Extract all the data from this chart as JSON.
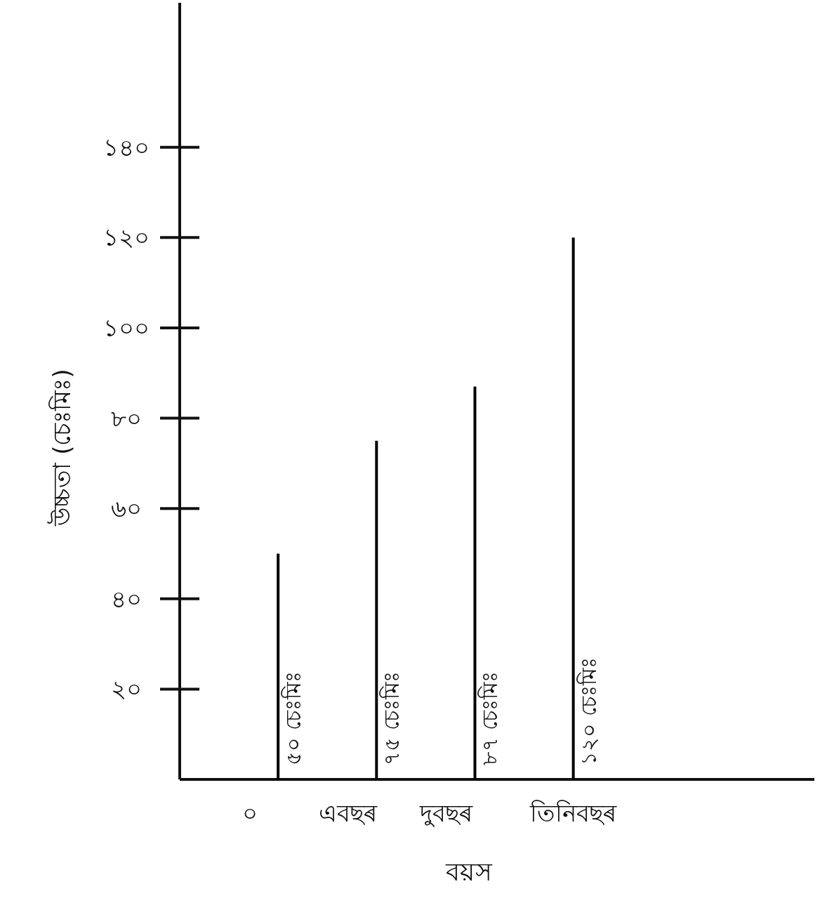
{
  "chart_data": {
    "type": "bar",
    "xlabel": "বয়স",
    "ylabel": "উচ্চতা (চেঃমিঃ)",
    "categories": [
      "০",
      "এবছৰ",
      "দুবছৰ",
      "তিনিবছৰ"
    ],
    "values": [
      50,
      75,
      87,
      120
    ],
    "value_labels": [
      "৫০ চেঃমিঃ",
      "৭৫ চেঃমিঃ",
      "৮৭ চেঃমিঃ",
      "১২০ চেঃমিঃ"
    ],
    "color": "#000000",
    "ylim": [
      0,
      172
    ],
    "yticks": [
      {
        "value": 20,
        "label": "২০"
      },
      {
        "value": 40,
        "label": "৪০"
      },
      {
        "value": 60,
        "label": "৬০"
      },
      {
        "value": 80,
        "label": "৮০"
      },
      {
        "value": 100,
        "label": "১০০"
      },
      {
        "value": 120,
        "label": "১২০"
      },
      {
        "value": 140,
        "label": "১৪০"
      }
    ]
  }
}
